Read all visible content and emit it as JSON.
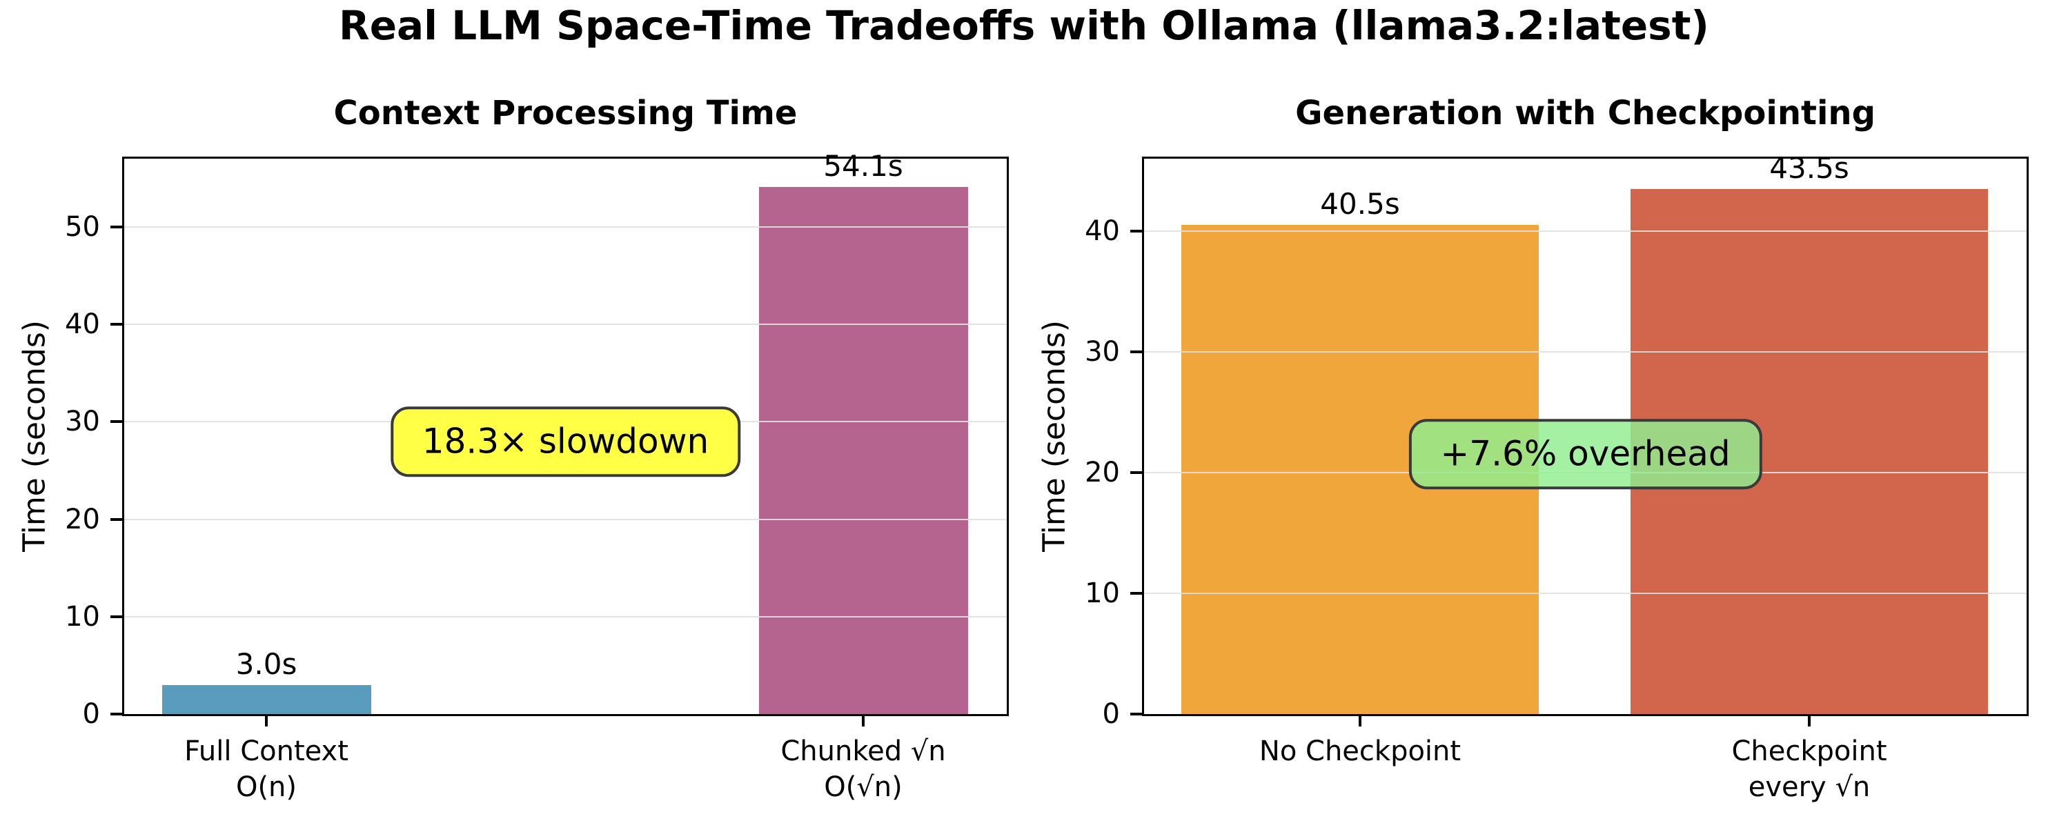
{
  "figure": {
    "suptitle": "Real LLM Space-Time Tradeoffs with Ollama (llama3.2:latest)",
    "background_color": "#ffffff"
  },
  "chart_data": [
    {
      "type": "bar",
      "title": "Context Processing Time",
      "ylabel": "Time (seconds)",
      "categories": [
        "Full Context\nO(n)",
        "Chunked √n\nO(√n)"
      ],
      "values": [
        3.0,
        54.1
      ],
      "bar_labels": [
        "3.0s",
        "54.1s"
      ],
      "bar_colors": [
        "#5A9CBE",
        "#B4648F"
      ],
      "ylim": [
        0,
        57
      ],
      "yticks": [
        0,
        10,
        20,
        30,
        40,
        50
      ],
      "grid": true,
      "legend": false,
      "annotation": {
        "text": "18.3× slowdown",
        "bg_color": "rgba(255,255,60,0.95)",
        "border_color": "#3a3a3a"
      }
    },
    {
      "type": "bar",
      "title": "Generation with Checkpointing",
      "ylabel": "Time (seconds)",
      "categories": [
        "No Checkpoint",
        "Checkpoint\nevery √n"
      ],
      "values": [
        40.5,
        43.5
      ],
      "bar_labels": [
        "40.5s",
        "43.5s"
      ],
      "bar_colors": [
        "#F0A63B",
        "#D2664D"
      ],
      "ylim": [
        0,
        46
      ],
      "yticks": [
        0,
        10,
        20,
        30,
        40
      ],
      "grid": true,
      "legend": false,
      "annotation": {
        "text": "+7.6% overhead",
        "bg_color": "rgba(144,238,144,0.82)",
        "border_color": "#3a3a3a"
      }
    }
  ]
}
